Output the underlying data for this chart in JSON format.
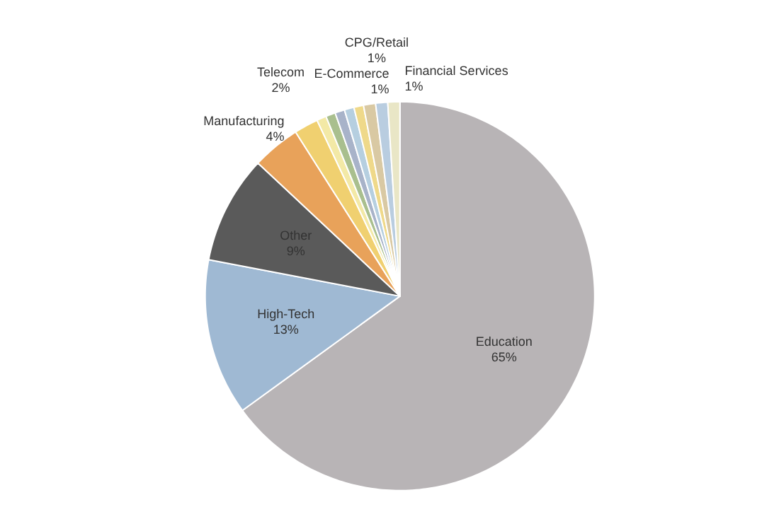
{
  "chart_data": {
    "type": "pie",
    "categories": [
      "Education",
      "High-Tech",
      "Other",
      "Manufacturing",
      "Telecom",
      null,
      null,
      null,
      null,
      null,
      "E-Commerce",
      "CPG/Retail",
      "Financial Services"
    ],
    "values": [
      65,
      13,
      9,
      4,
      2,
      0.8,
      0.8,
      0.8,
      0.8,
      0.8,
      1,
      1,
      1
    ],
    "value_labels": [
      "65%",
      "13%",
      "9%",
      "4%",
      "2%",
      null,
      null,
      null,
      null,
      null,
      "1%",
      "1%",
      "1%"
    ],
    "colors": [
      "#b8b4b6",
      "#9fb9d3",
      "#5a5a5a",
      "#e8a25a",
      "#f0d070",
      "#f3e9a6",
      "#a9bf8e",
      "#a8b3c9",
      "#b6cfe0",
      "#efd98a",
      "#d9c9a3",
      "#b9cde0",
      "#e9e6c6"
    ]
  }
}
